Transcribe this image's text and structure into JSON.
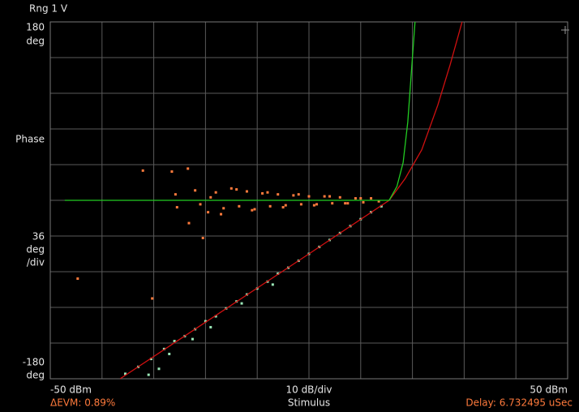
{
  "chart_data": {
    "type": "scatter",
    "title": "Rng 1 V",
    "ylabel": "Phase",
    "y_unit": "deg",
    "ydiv": {
      "value": 36,
      "label": "36"
    },
    "ydiv_label": "/div",
    "xdiv": {
      "value": 10,
      "label": "10 dB/div"
    },
    "xlabel": "Stimulus",
    "xlim": [
      -50,
      50
    ],
    "ylim": [
      -180,
      180
    ],
    "xticks": [
      {
        "value": -50,
        "label": "-50 dBm"
      },
      {
        "value": 50,
        "label": "50 dBm"
      }
    ],
    "yticks": [
      -180,
      180
    ],
    "grid": true,
    "annotations": {
      "evm": "ΔEVM: 0.89%",
      "delay": "Delay: 6.732495 uSec"
    },
    "series": [
      {
        "kind": "points",
        "color": "#ff7a3c",
        "x": [
          -32.1,
          -26.5,
          -23.4,
          -25.5,
          -23.2,
          -20.5,
          -44.7,
          -30.3,
          -25.8,
          -22.0,
          -19.5,
          -18.0,
          -16.5,
          -15.0,
          -13.5,
          -12.0,
          -10.5,
          -9.0,
          -7.5,
          -6.0,
          -4.5,
          -3.0,
          -1.5,
          0.0,
          1.5,
          3.0,
          4.5,
          6.0,
          7.5,
          9.0,
          10.5,
          12.0,
          13.5,
          -17.0,
          -14.0,
          -11.0,
          -8.0,
          -5.0,
          -2.0,
          1.0,
          4.0,
          7.0,
          10.0,
          -21.0,
          -19.0
        ],
        "values": [
          30,
          29,
          32,
          -7,
          -23,
          -38,
          -79,
          -99,
          6,
          10,
          -12,
          8,
          -8,
          12,
          -6,
          9,
          -9,
          7,
          -6,
          6,
          -5,
          5,
          -4,
          4,
          -4,
          4,
          -3,
          3,
          -3,
          2,
          -2,
          2,
          -1,
          -14,
          11,
          -10,
          8,
          -7,
          6,
          -5,
          4,
          -3,
          2,
          -4,
          3
        ]
      },
      {
        "kind": "points",
        "color": "#9be8b8",
        "x": [
          -35.5,
          -33.0,
          -30.5,
          -28.0,
          -26.0,
          -24.0,
          -22.0,
          -20.0,
          -18.0,
          -16.0,
          -14.0,
          -12.0,
          -10.0,
          -8.0,
          -6.0,
          -4.0,
          -2.0,
          0.0,
          2.0,
          4.0,
          6.0,
          8.0,
          10.0,
          12.0,
          14.0,
          -29.0,
          -27.0,
          -31.0,
          -22.5,
          -19.0,
          -13.0,
          -7.0
        ],
        "values": [
          -175,
          -168,
          -160,
          -150,
          -142,
          -137,
          -130,
          -122,
          -117,
          -109,
          -102,
          -95,
          -89,
          -82,
          -74,
          -68,
          -61,
          -54,
          -47,
          -40,
          -33,
          -26,
          -19,
          -12,
          -6,
          -170,
          -155,
          -176,
          -140,
          -128,
          -104,
          -85
        ]
      },
      {
        "kind": "line",
        "color": "#d01010",
        "x": [
          -36.5,
          -20.0,
          0.0,
          15.5,
          18.6,
          21.8,
          24.9,
          27.3,
          29.6
        ],
        "values": [
          -180,
          -123,
          -54,
          0,
          22,
          51,
          96,
          137,
          180
        ]
      },
      {
        "kind": "line",
        "color": "#22cc22",
        "x": [
          -47.2,
          0.0,
          15.5,
          17.0,
          18.2,
          19.1,
          19.9,
          20.5
        ],
        "values": [
          0,
          0,
          0,
          14,
          38,
          79,
          137,
          180
        ]
      }
    ]
  }
}
